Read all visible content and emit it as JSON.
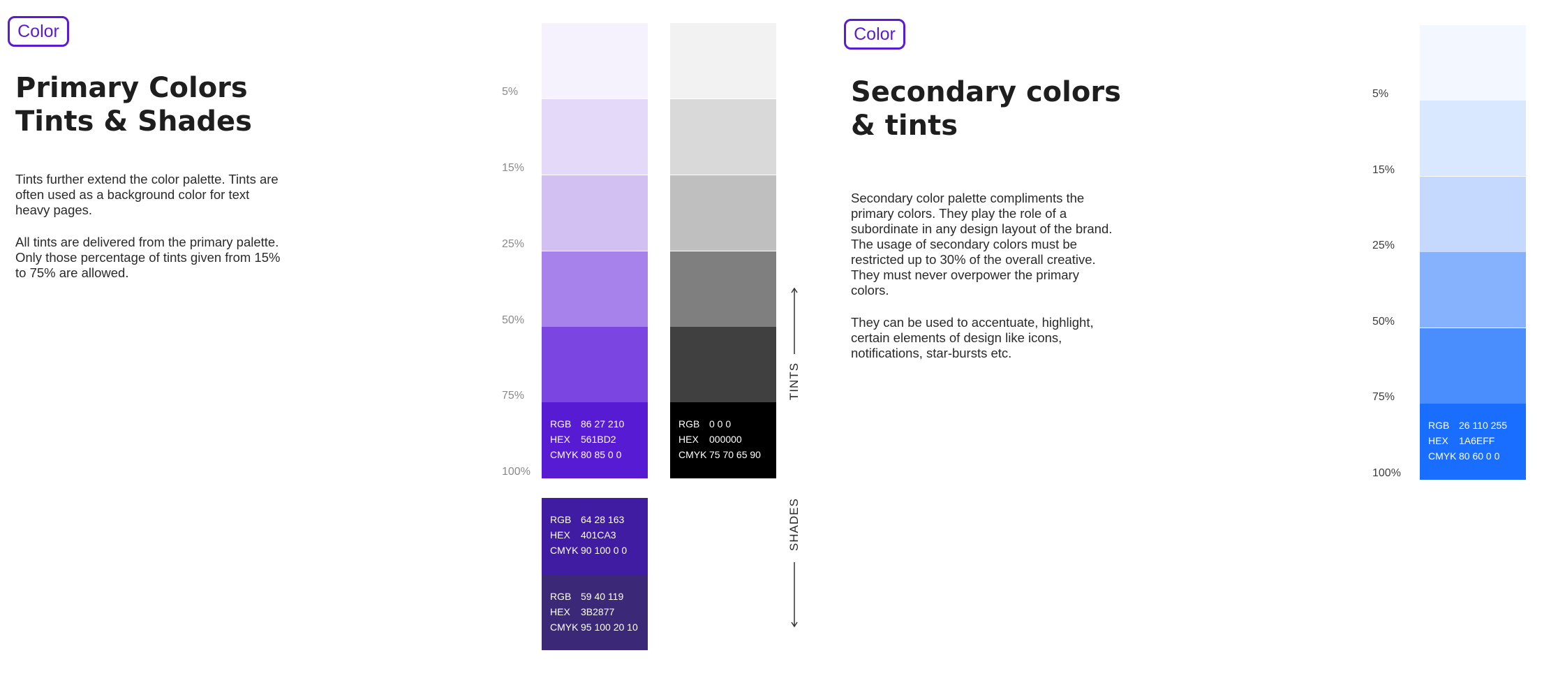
{
  "left": {
    "tag": "Color",
    "title_line1": "Primary Colors",
    "title_line2": "Tints & Shades",
    "para1": "Tints further extend the color palette. Tints are often used as a background color for text heavy pages.",
    "para2": "All tints are delivered from the primary palette. Only those percentage of tints given from 15% to 75% are allowed.",
    "percent_labels": [
      "5%",
      "15%",
      "25%",
      "50%",
      "75%",
      "100%"
    ],
    "purple_tints": [
      {
        "color": "#f5f2fe"
      },
      {
        "color": "#e4d9f8"
      },
      {
        "color": "#d3c0f3"
      },
      {
        "color": "#a782ea"
      },
      {
        "color": "#7a45e0"
      },
      {
        "color": "#561BD2",
        "rgb": "86 27 210",
        "hex": "561BD2",
        "cmyk": "80 85 0 0"
      }
    ],
    "gray_tints": [
      {
        "color": "#f2f2f2"
      },
      {
        "color": "#d9d9d9"
      },
      {
        "color": "#bfbfbf"
      },
      {
        "color": "#7f7f7f"
      },
      {
        "color": "#404040"
      },
      {
        "color": "#000000",
        "rgb": "0 0 0",
        "hex": "000000",
        "cmyk": "75 70 65 90"
      }
    ],
    "shades": [
      {
        "color": "#401CA3",
        "rgb": "64 28 163",
        "hex": "401CA3",
        "cmyk": "90 100 0 0"
      },
      {
        "color": "#3B2877",
        "rgb": "59 40 119",
        "hex": "3B2877",
        "cmyk": "95 100 20 10"
      }
    ],
    "label_keys": {
      "rgb": "RGB",
      "hex": "HEX",
      "cmyk": "CMYK"
    },
    "tints_label": "TINTS",
    "shades_label": "SHADES"
  },
  "right": {
    "tag": "Color",
    "title_line1": "Secondary colors",
    "title_line2": "& tints",
    "para1": "Secondary color palette compliments the primary colors. They play the role of a subordinate in any design layout of the brand. The usage of secondary colors must be restricted up to 30% of the overall creative. They must never overpower the primary colors.",
    "para2": "They can be used to accentuate, highlight, certain elements of design like icons, notifications, star-bursts etc.",
    "percent_labels": [
      "5%",
      "15%",
      "25%",
      "50%",
      "75%",
      "100%"
    ],
    "blue_tints": [
      {
        "color": "#f3f7ff"
      },
      {
        "color": "#dae8ff"
      },
      {
        "color": "#c5d9fe"
      },
      {
        "color": "#86b2fd"
      },
      {
        "color": "#4a8dfc"
      },
      {
        "color": "#1A6EFF",
        "rgb": "26 110 255",
        "hex": "1A6EFF",
        "cmyk": "80 60 0 0"
      }
    ]
  }
}
